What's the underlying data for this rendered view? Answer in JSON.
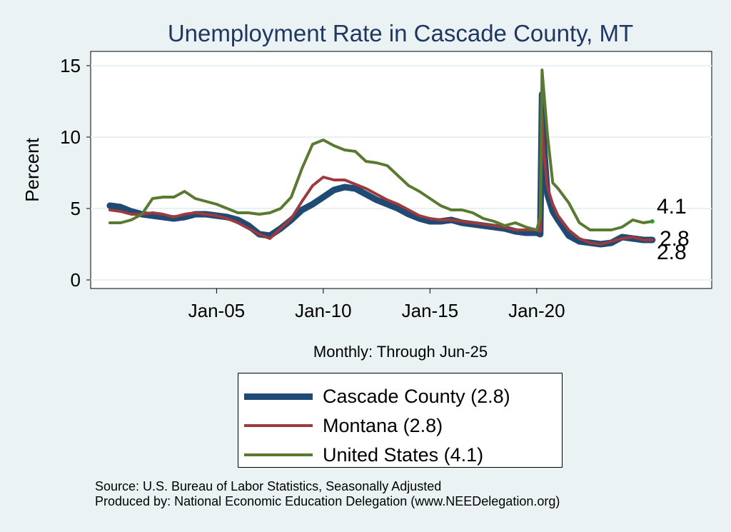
{
  "chart_data": {
    "type": "line",
    "title": "Unemployment Rate in Cascade  County, MT",
    "xlabel": "Monthly: Through Jun-25",
    "ylabel": "Percent",
    "ylim": [
      0,
      16
    ],
    "yticks": [
      0,
      5,
      10,
      15
    ],
    "xticks": [
      {
        "t": 2005,
        "label": "Jan-05"
      },
      {
        "t": 2010,
        "label": "Jan-10"
      },
      {
        "t": 2015,
        "label": "Jan-15"
      },
      {
        "t": 2020,
        "label": "Jan-20"
      }
    ],
    "xlim": [
      "Jan-2000",
      "Jun-2025"
    ],
    "grid": true,
    "legend_position": "bottom",
    "series": [
      {
        "name": "Cascade  County (2.8)",
        "color": "#1f4a73",
        "end_label": "2.8",
        "points": [
          [
            "Jan-2000",
            5.2
          ],
          [
            "Jul-2000",
            5.1
          ],
          [
            "Jan-2001",
            4.8
          ],
          [
            "Jul-2001",
            4.6
          ],
          [
            "Jan-2002",
            4.5
          ],
          [
            "Jul-2002",
            4.4
          ],
          [
            "Jan-2003",
            4.3
          ],
          [
            "Jul-2003",
            4.4
          ],
          [
            "Jan-2004",
            4.6
          ],
          [
            "Jul-2004",
            4.6
          ],
          [
            "Jan-2005",
            4.5
          ],
          [
            "Jul-2005",
            4.4
          ],
          [
            "Jan-2006",
            4.2
          ],
          [
            "Jul-2006",
            3.8
          ],
          [
            "Jan-2007",
            3.2
          ],
          [
            "Jul-2007",
            3.1
          ],
          [
            "Jan-2008",
            3.6
          ],
          [
            "Jul-2008",
            4.2
          ],
          [
            "Jan-2009",
            4.9
          ],
          [
            "Jul-2009",
            5.3
          ],
          [
            "Jan-2010",
            5.8
          ],
          [
            "Jul-2010",
            6.3
          ],
          [
            "Jan-2011",
            6.5
          ],
          [
            "Jul-2011",
            6.4
          ],
          [
            "Jan-2012",
            6.0
          ],
          [
            "Jul-2012",
            5.6
          ],
          [
            "Jan-2013",
            5.3
          ],
          [
            "Jul-2013",
            5.0
          ],
          [
            "Jan-2014",
            4.6
          ],
          [
            "Jul-2014",
            4.3
          ],
          [
            "Jan-2015",
            4.1
          ],
          [
            "Jul-2015",
            4.1
          ],
          [
            "Jan-2016",
            4.2
          ],
          [
            "Jul-2016",
            4.0
          ],
          [
            "Jan-2017",
            3.9
          ],
          [
            "Jul-2017",
            3.8
          ],
          [
            "Jan-2018",
            3.7
          ],
          [
            "Jul-2018",
            3.6
          ],
          [
            "Jan-2019",
            3.4
          ],
          [
            "Jul-2019",
            3.3
          ],
          [
            "Jan-2020",
            3.3
          ],
          [
            "Mar-2020",
            3.2
          ],
          [
            "Apr-2020",
            13.0
          ],
          [
            "May-2020",
            9.5
          ],
          [
            "Jul-2020",
            6.0
          ],
          [
            "Oct-2020",
            4.8
          ],
          [
            "Jan-2021",
            4.2
          ],
          [
            "Jul-2021",
            3.1
          ],
          [
            "Jan-2022",
            2.7
          ],
          [
            "Jul-2022",
            2.6
          ],
          [
            "Jan-2023",
            2.5
          ],
          [
            "Jul-2023",
            2.6
          ],
          [
            "Jan-2024",
            3.0
          ],
          [
            "Jul-2024",
            2.9
          ],
          [
            "Jan-2025",
            2.8
          ],
          [
            "Jun-2025",
            2.8
          ]
        ]
      },
      {
        "name": "Montana (2.8)",
        "color": "#9c3a3d",
        "end_label": "2.8",
        "points": [
          [
            "Jan-2000",
            4.9
          ],
          [
            "Jul-2000",
            4.8
          ],
          [
            "Jan-2001",
            4.6
          ],
          [
            "Jul-2001",
            4.6
          ],
          [
            "Jan-2002",
            4.7
          ],
          [
            "Jul-2002",
            4.6
          ],
          [
            "Jan-2003",
            4.4
          ],
          [
            "Jul-2003",
            4.6
          ],
          [
            "Jan-2004",
            4.7
          ],
          [
            "Jul-2004",
            4.6
          ],
          [
            "Jan-2005",
            4.5
          ],
          [
            "Jul-2005",
            4.3
          ],
          [
            "Jan-2006",
            4.0
          ],
          [
            "Jul-2006",
            3.6
          ],
          [
            "Jan-2007",
            3.2
          ],
          [
            "Jul-2007",
            2.9
          ],
          [
            "Jan-2008",
            3.6
          ],
          [
            "Jul-2008",
            4.3
          ],
          [
            "Jan-2009",
            5.5
          ],
          [
            "Jul-2009",
            6.6
          ],
          [
            "Jan-2010",
            7.2
          ],
          [
            "Jul-2010",
            7.0
          ],
          [
            "Jan-2011",
            7.0
          ],
          [
            "Jul-2011",
            6.7
          ],
          [
            "Jan-2012",
            6.4
          ],
          [
            "Jul-2012",
            6.0
          ],
          [
            "Jan-2013",
            5.6
          ],
          [
            "Jul-2013",
            5.3
          ],
          [
            "Jan-2014",
            4.9
          ],
          [
            "Jul-2014",
            4.5
          ],
          [
            "Jan-2015",
            4.3
          ],
          [
            "Jul-2015",
            4.2
          ],
          [
            "Jan-2016",
            4.2
          ],
          [
            "Jul-2016",
            4.1
          ],
          [
            "Jan-2017",
            4.0
          ],
          [
            "Jul-2017",
            3.9
          ],
          [
            "Jan-2018",
            3.8
          ],
          [
            "Jul-2018",
            3.7
          ],
          [
            "Jan-2019",
            3.5
          ],
          [
            "Jul-2019",
            3.5
          ],
          [
            "Jan-2020",
            3.5
          ],
          [
            "Mar-2020",
            3.4
          ],
          [
            "Apr-2020",
            11.5
          ],
          [
            "May-2020",
            9.0
          ],
          [
            "Jul-2020",
            6.5
          ],
          [
            "Oct-2020",
            5.3
          ],
          [
            "Jan-2021",
            4.5
          ],
          [
            "Jul-2021",
            3.5
          ],
          [
            "Jan-2022",
            2.9
          ],
          [
            "Jul-2022",
            2.6
          ],
          [
            "Jan-2023",
            2.5
          ],
          [
            "Jul-2023",
            2.7
          ],
          [
            "Jan-2024",
            2.9
          ],
          [
            "Jul-2024",
            3.0
          ],
          [
            "Jan-2025",
            2.8
          ],
          [
            "Jun-2025",
            2.8
          ]
        ]
      },
      {
        "name": "United States (4.1)",
        "color": "#5a7a32",
        "end_label": "4.1",
        "points": [
          [
            "Jan-2000",
            4.0
          ],
          [
            "Jul-2000",
            4.0
          ],
          [
            "Jan-2001",
            4.2
          ],
          [
            "Jul-2001",
            4.6
          ],
          [
            "Jan-2002",
            5.7
          ],
          [
            "Jul-2002",
            5.8
          ],
          [
            "Jan-2003",
            5.8
          ],
          [
            "Jul-2003",
            6.2
          ],
          [
            "Jan-2004",
            5.7
          ],
          [
            "Jul-2004",
            5.5
          ],
          [
            "Jan-2005",
            5.3
          ],
          [
            "Jul-2005",
            5.0
          ],
          [
            "Jan-2006",
            4.7
          ],
          [
            "Jul-2006",
            4.7
          ],
          [
            "Jan-2007",
            4.6
          ],
          [
            "Jul-2007",
            4.7
          ],
          [
            "Jan-2008",
            5.0
          ],
          [
            "Jul-2008",
            5.8
          ],
          [
            "Jan-2009",
            7.8
          ],
          [
            "Jul-2009",
            9.5
          ],
          [
            "Jan-2010",
            9.8
          ],
          [
            "Jul-2010",
            9.4
          ],
          [
            "Jan-2011",
            9.1
          ],
          [
            "Jul-2011",
            9.0
          ],
          [
            "Jan-2012",
            8.3
          ],
          [
            "Jul-2012",
            8.2
          ],
          [
            "Jan-2013",
            8.0
          ],
          [
            "Jul-2013",
            7.3
          ],
          [
            "Jan-2014",
            6.6
          ],
          [
            "Jul-2014",
            6.2
          ],
          [
            "Jan-2015",
            5.7
          ],
          [
            "Jul-2015",
            5.2
          ],
          [
            "Jan-2016",
            4.9
          ],
          [
            "Jul-2016",
            4.9
          ],
          [
            "Jan-2017",
            4.7
          ],
          [
            "Jul-2017",
            4.3
          ],
          [
            "Jan-2018",
            4.1
          ],
          [
            "Jul-2018",
            3.8
          ],
          [
            "Jan-2019",
            4.0
          ],
          [
            "Jul-2019",
            3.7
          ],
          [
            "Jan-2020",
            3.5
          ],
          [
            "Mar-2020",
            4.4
          ],
          [
            "Apr-2020",
            14.7
          ],
          [
            "May-2020",
            13.2
          ],
          [
            "Jul-2020",
            10.2
          ],
          [
            "Oct-2020",
            6.8
          ],
          [
            "Jan-2021",
            6.4
          ],
          [
            "Jul-2021",
            5.4
          ],
          [
            "Jan-2022",
            4.0
          ],
          [
            "Jul-2022",
            3.5
          ],
          [
            "Jan-2023",
            3.5
          ],
          [
            "Jul-2023",
            3.5
          ],
          [
            "Jan-2024",
            3.7
          ],
          [
            "Jul-2024",
            4.2
          ],
          [
            "Jan-2025",
            4.0
          ],
          [
            "Jun-2025",
            4.1
          ]
        ]
      }
    ]
  },
  "notes": {
    "source": "Source: U.S. Bureau of Labor Statistics, Seasonally Adjusted",
    "produced_by": "Produced by: National Economic Education Delegation (www.NEEDelegation.org)"
  }
}
